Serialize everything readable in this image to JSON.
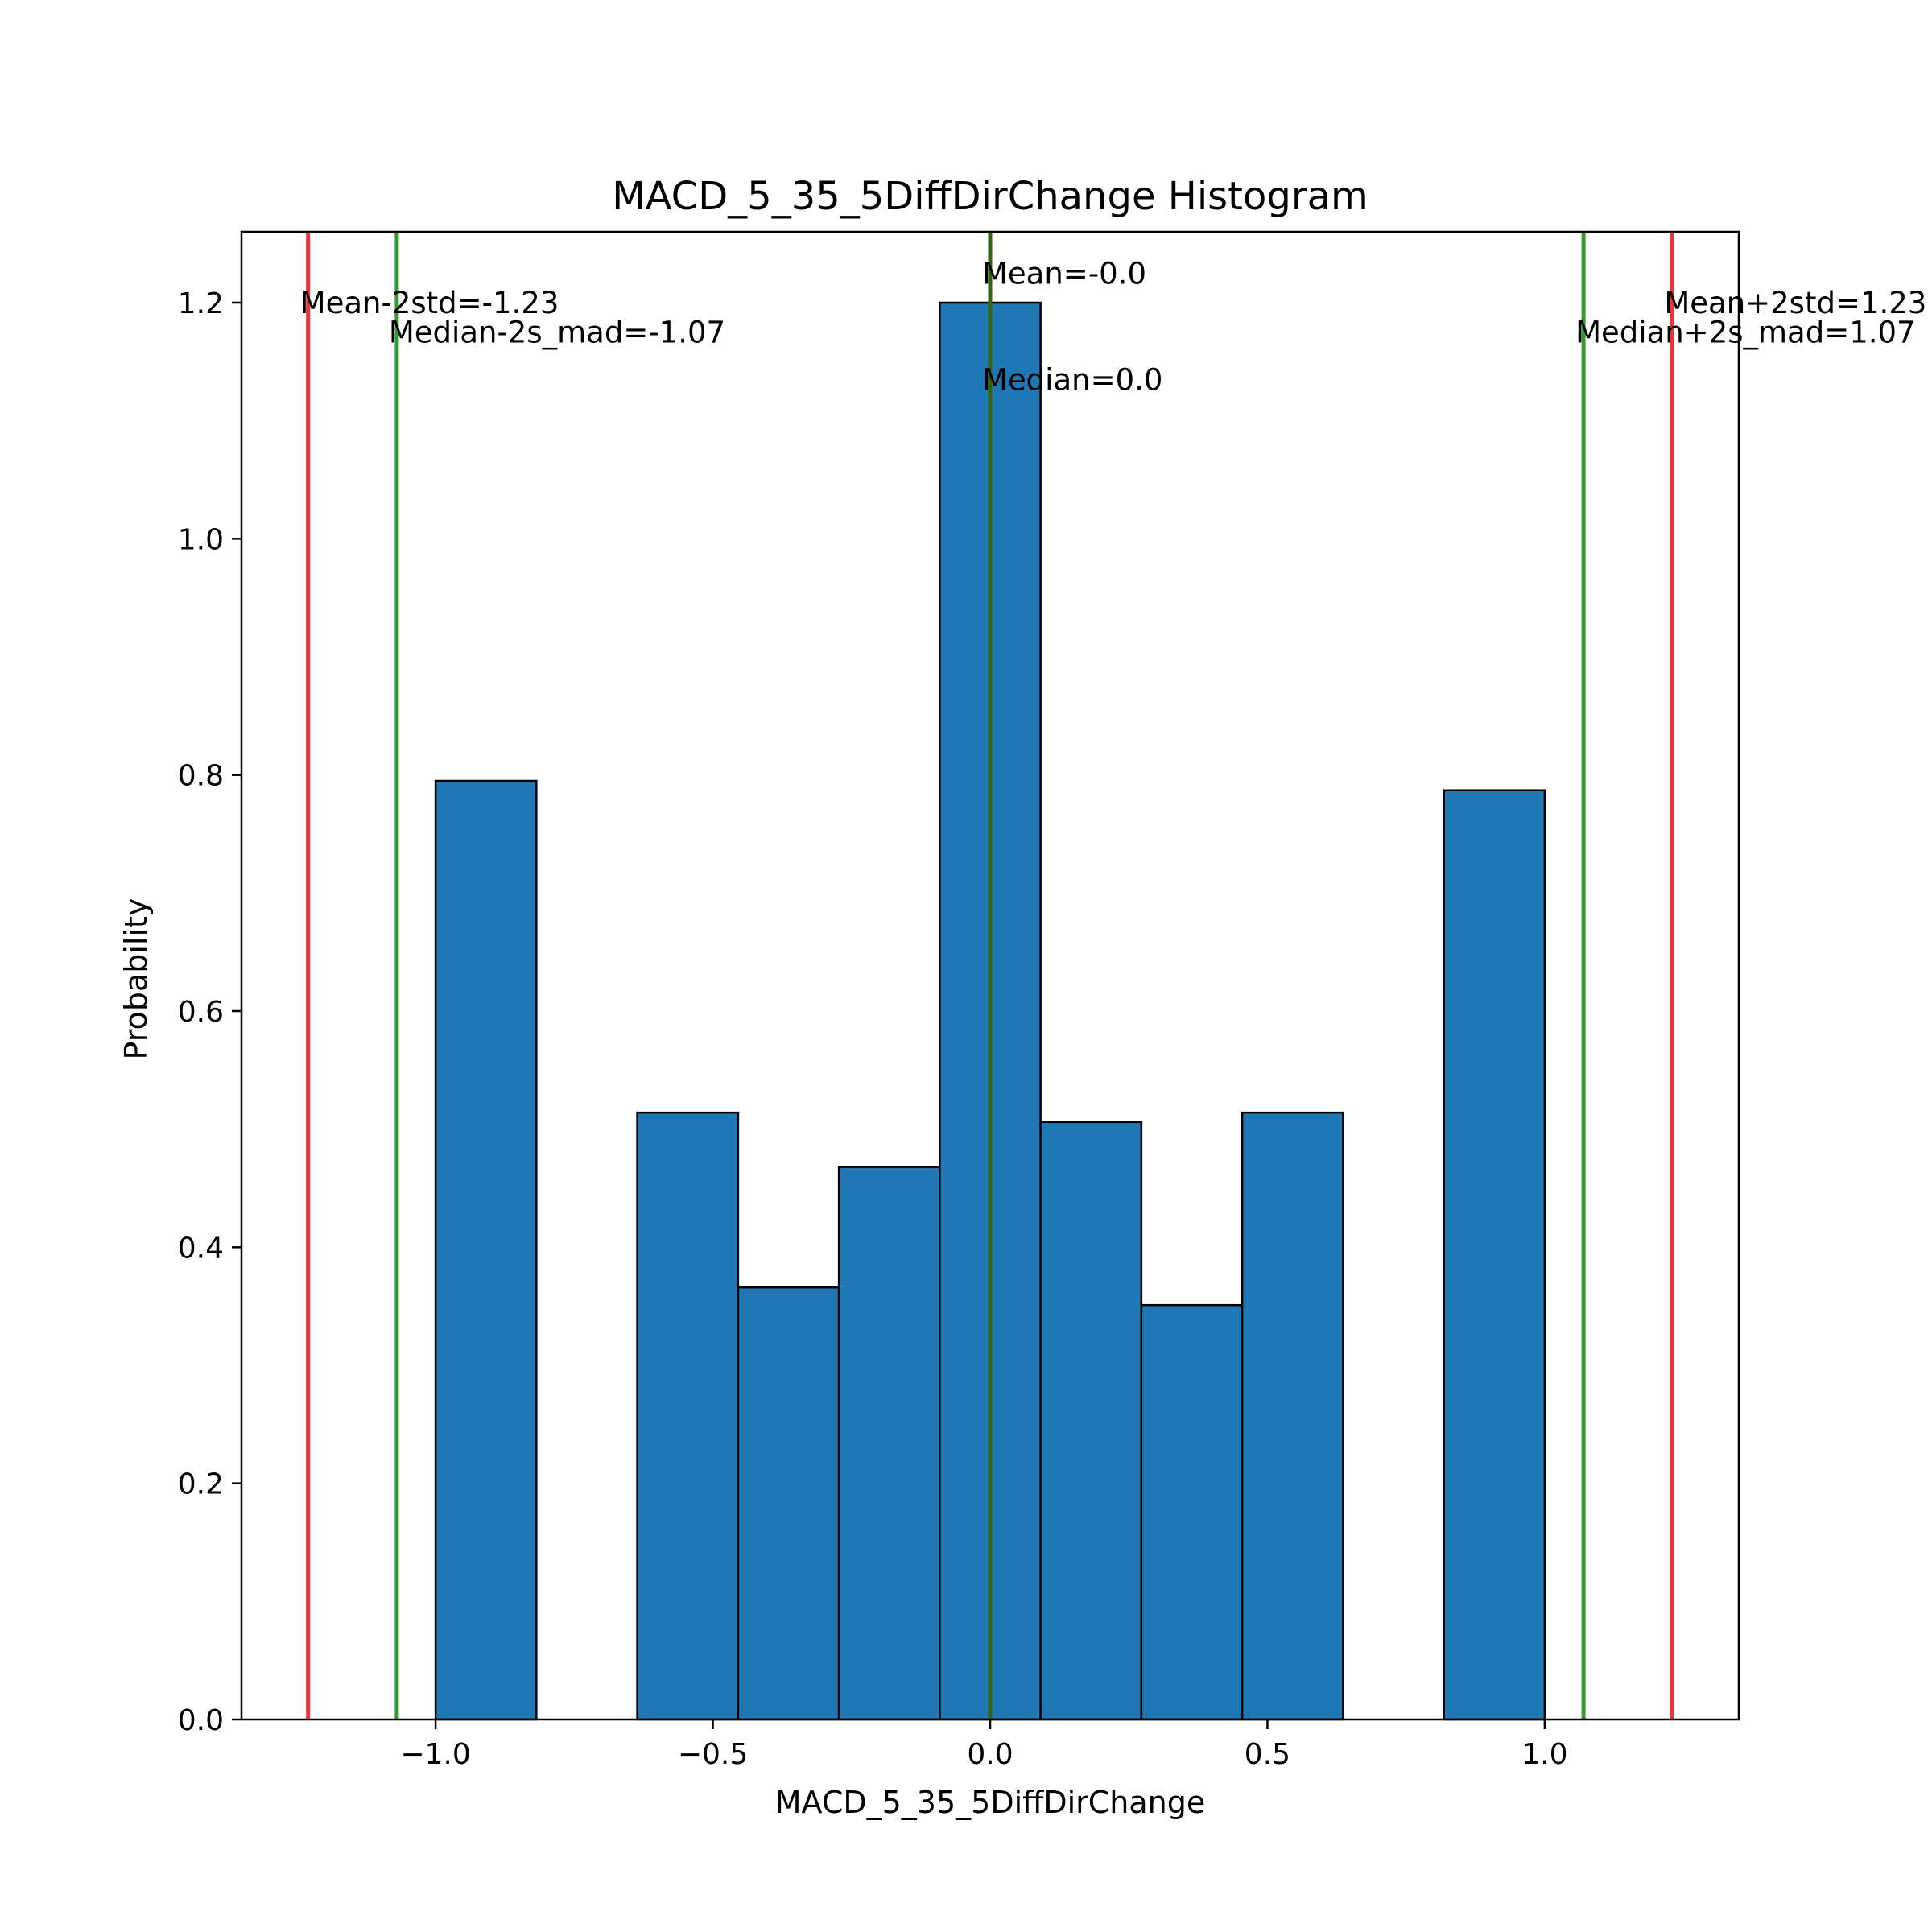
{
  "colors": {
    "bar_fill": "#1f77b4",
    "bar_edge": "#000000",
    "mean_line": "#ee3333",
    "median_line": "#339933",
    "center_line": "#336611"
  },
  "chart_data": {
    "type": "bar",
    "title": "MACD_5_35_5DiffDirChange Histogram",
    "xlabel": "MACD_5_35_5DiffDirChange",
    "ylabel": "Probability",
    "xlim": [
      -1.35,
      1.35
    ],
    "ylim": [
      0,
      1.26
    ],
    "grid": false,
    "legend": "none",
    "bins": [
      {
        "x0": -1.0,
        "x1": -0.8182,
        "value": 0.795
      },
      {
        "x0": -0.8182,
        "x1": -0.6364,
        "value": 0.0
      },
      {
        "x0": -0.6364,
        "x1": -0.4545,
        "value": 0.514
      },
      {
        "x0": -0.4545,
        "x1": -0.2727,
        "value": 0.366
      },
      {
        "x0": -0.2727,
        "x1": -0.0909,
        "value": 0.468
      },
      {
        "x0": -0.0909,
        "x1": 0.0909,
        "value": 1.2
      },
      {
        "x0": 0.0909,
        "x1": 0.2727,
        "value": 0.506
      },
      {
        "x0": 0.2727,
        "x1": 0.4545,
        "value": 0.351
      },
      {
        "x0": 0.4545,
        "x1": 0.6364,
        "value": 0.514
      },
      {
        "x0": 0.6364,
        "x1": 0.8182,
        "value": 0.0
      },
      {
        "x0": 0.8182,
        "x1": 1.0,
        "value": 0.787
      }
    ],
    "x_ticks": [
      {
        "value": -1.0,
        "label": "−1.0"
      },
      {
        "value": -0.5,
        "label": "−0.5"
      },
      {
        "value": 0.0,
        "label": "0.0"
      },
      {
        "value": 0.5,
        "label": "0.5"
      },
      {
        "value": 1.0,
        "label": "1.0"
      }
    ],
    "y_ticks": [
      {
        "value": 0.0,
        "label": "0.0"
      },
      {
        "value": 0.2,
        "label": "0.2"
      },
      {
        "value": 0.4,
        "label": "0.4"
      },
      {
        "value": 0.6,
        "label": "0.6"
      },
      {
        "value": 0.8,
        "label": "0.8"
      },
      {
        "value": 1.0,
        "label": "1.0"
      },
      {
        "value": 1.2,
        "label": "1.2"
      }
    ],
    "reference_lines": [
      {
        "name": "mean-minus-2std-line",
        "x": -1.23,
        "color_key": "mean_line",
        "label": "Mean-2std=-1.23",
        "label_y": 1.2
      },
      {
        "name": "median-minus-2s-mad-line",
        "x": -1.07,
        "color_key": "median_line",
        "label": "Median-2s_mad=-1.07",
        "label_y": 1.175
      },
      {
        "name": "mean-line",
        "x": 0.0,
        "color_key": "mean_line",
        "label": "Mean=-0.0",
        "label_y": 1.225
      },
      {
        "name": "median-line",
        "x": 0.0,
        "color_key": "center_line",
        "label": "Median=0.0",
        "label_y": 1.135
      },
      {
        "name": "median-plus-2s-mad-line",
        "x": 1.07,
        "color_key": "median_line",
        "label": "Median+2s_mad=1.07",
        "label_y": 1.175
      },
      {
        "name": "mean-plus-2std-line",
        "x": 1.23,
        "color_key": "mean_line",
        "label": "Mean+2std=1.23",
        "label_y": 1.2
      }
    ]
  }
}
